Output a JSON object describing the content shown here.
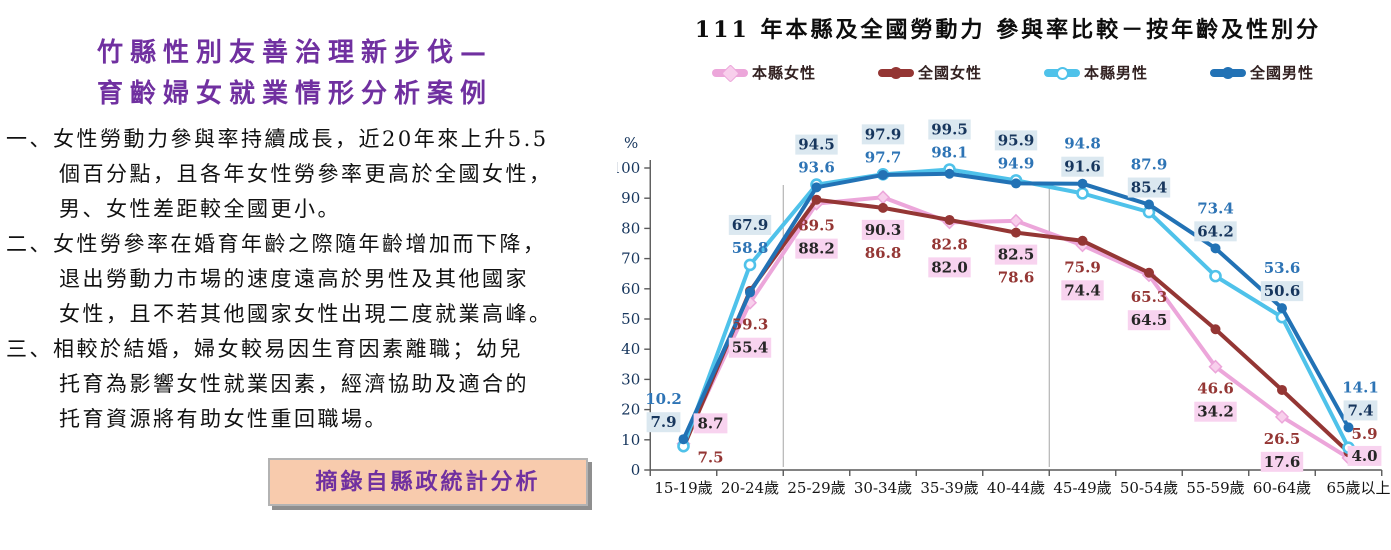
{
  "left_panel": {
    "title_lines": [
      "竹縣性別友善治理新步伐—",
      "育齡婦女就業情形分析案例"
    ],
    "title_color": "#7030A0",
    "paragraphs": [
      {
        "lines": [
          "一、女性勞動力參與率持續成長，近20年來上升5.5",
          "個百分點，且各年女性勞參率更高於全國女性，",
          "男、女性差距較全國更小。"
        ]
      },
      {
        "lines": [
          "二、女性勞參率在婚育年齡之際隨年齡增加而下降，",
          "退出勞動力市場的速度遠高於男性及其他國家",
          "女性，且不若其他國家女性出現二度就業高峰。"
        ]
      },
      {
        "lines": [
          "三、相較於結婚，婦女較易因生育因素離職；幼兒",
          "托育為影響女性就業因素，經濟協助及適合的",
          "托育資源將有助女性重回職場。"
        ]
      }
    ],
    "source_box_label": "摘錄自縣政統計分析"
  },
  "chart_data": {
    "type": "line",
    "title": "111 年本縣及全國勞動力 參與率比較－按年齡及性別分",
    "y_unit": "%",
    "ylim": [
      0,
      100
    ],
    "y_ticks": [
      0,
      10,
      20,
      30,
      40,
      50,
      60,
      70,
      80,
      90,
      100
    ],
    "grid": "off",
    "legend_position": "top",
    "categories": [
      "15-19歲",
      "20-24歲",
      "25-29歲",
      "30-34歲",
      "35-39歲",
      "40-44歲",
      "45-49歲",
      "50-54歲",
      "55-59歲",
      "60-64歲",
      "65歲以上"
    ],
    "series": [
      {
        "name": "本縣女性",
        "color": "#ECA6DA",
        "marker": "diamond",
        "marker_fill": "#F8CFEC",
        "label_style": "boxed",
        "label_bg": "#F8D3EF",
        "label_text": "#262626",
        "values": [
          8.7,
          55.4,
          88.2,
          90.3,
          82.0,
          82.5,
          74.4,
          64.5,
          34.2,
          17.6,
          4.0
        ]
      },
      {
        "name": "全國女性",
        "color": "#943634",
        "marker": "circle",
        "label_style": "plain",
        "label_color": "#943634",
        "values": [
          7.5,
          59.3,
          89.5,
          86.8,
          82.8,
          78.6,
          75.9,
          65.3,
          46.6,
          26.5,
          5.9
        ]
      },
      {
        "name": "本縣男性",
        "color": "#4FC2EA",
        "marker": "open-circle",
        "label_style": "boxed",
        "label_bg": "#DBE8F0",
        "label_text": "#17365D",
        "values": [
          7.9,
          67.9,
          94.5,
          97.9,
          99.5,
          95.9,
          91.6,
          85.4,
          64.2,
          50.6,
          7.4
        ]
      },
      {
        "name": "全國男性",
        "color": "#2272B5",
        "marker": "circle",
        "label_style": "plain",
        "label_color": "#2E74B5",
        "values": [
          10.2,
          58.8,
          93.6,
          97.7,
          98.1,
          94.9,
          94.8,
          87.9,
          73.4,
          53.6,
          14.1
        ]
      }
    ],
    "reference_line_boundaries": [
      2,
      6
    ],
    "reference_line_color": "#a6a6a6"
  }
}
